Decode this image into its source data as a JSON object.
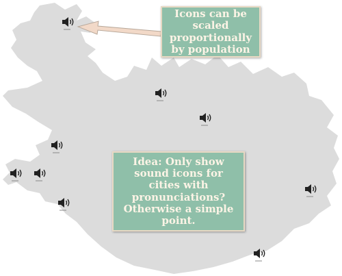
{
  "notes": {
    "top": "Icons can be scaled proportionally by population",
    "center": "Idea: Only show sound icons for cities with pronunciations? Otherwise a simple point."
  },
  "colors": {
    "land": "#dcdcdc",
    "note_bg": "#8fbfa9",
    "note_border": "#e8d9c4",
    "note_text": "#fdf4e6",
    "arrow": "#f2d9c8"
  },
  "icons": {
    "marker": "speaker-icon"
  }
}
